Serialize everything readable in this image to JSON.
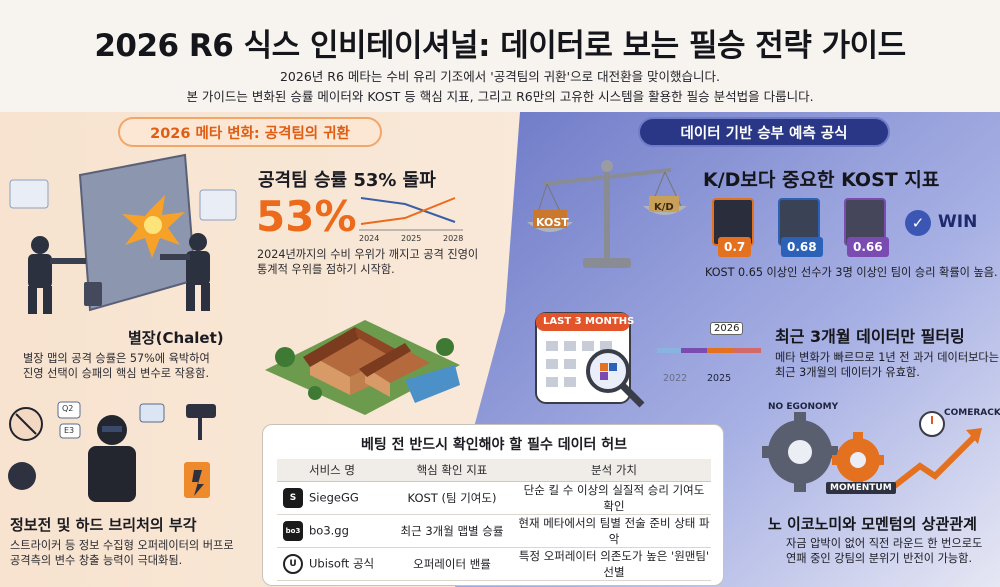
{
  "header": {
    "title": "2026 R6 식스 인비테이셔널: 데이터로 보는 필승 전략 가이드",
    "subtitle_1": "2026년 R6 메타는 수비 유리 기조에서 '공격팀의 귀환'으로 대전환을 맞이했습니다.",
    "subtitle_2": "본 가이드는 변화된 승률 메이터와 KOST 등 핵심 지표, 그리고 R6만의 고유한 시스템을 활용한 필승 분석법을 다룹니다."
  },
  "left": {
    "section_label": "2026 메타 변화: 공격팀의 귀환",
    "winrate": {
      "title": "공격팀 승률 53% 돌파",
      "big_number": "53%",
      "chart_x_ticks": [
        "2024",
        "2025",
        "2028"
      ],
      "desc_1": "2024년까지의 수비 우위가 깨지고 공격 진영이",
      "desc_2": "통계적 우위를 점하기 시작함."
    },
    "chalet": {
      "title": "별장(Chalet)",
      "desc_1": "별장 맵의 공격 승률은 57%에 육박하여",
      "desc_2": "진영 선택이 승패의 핵심 변수로 작용함."
    },
    "breach": {
      "title": "정보전 및 하드 브리처의 부각",
      "desc_1": "스트라이커 등 정보 수집형 오퍼레이터의 버프로",
      "desc_2": "공격측의 변수 창출 능력이 극대화됨."
    },
    "screen_labels": [
      "Q2",
      "E3"
    ]
  },
  "right": {
    "section_label": "데이터 기반 승부 예측 공식",
    "kost": {
      "title": "K/D보다 중요한 KOST 지표",
      "scale_left": "KOST",
      "scale_right": "K/D",
      "players": [
        {
          "value": "0.7",
          "color": "#e3711f"
        },
        {
          "value": "0.68",
          "color": "#2b62b8"
        },
        {
          "value": "0.66",
          "color": "#7a4bb0"
        }
      ],
      "win_label": "WIN",
      "desc": "KOST 0.65 이상인 선수가 3명 이상인 팀이 승리 확률이 높음."
    },
    "filter": {
      "calendar_label": "LAST 3 MONTHS",
      "timeline_labels": [
        "2022",
        "2025",
        "2026"
      ],
      "title": "최근 3개월 데이터만 필터링",
      "desc_1": "메타 변화가 빠르므로 1년 전 과거 데이터보다는",
      "desc_2": "최근 3개월의 데이터가 유효함."
    },
    "economy": {
      "gear_label_1": "NO EGONOMY",
      "gear_label_2": "MOMENTUM",
      "arrow_label": "COMERACK",
      "title": "노 이코노미와 모멘텀의 상관관계",
      "desc_1": "자금 압박이 없어 직전 라운드 한 번으로도",
      "desc_2": "연패 중인 강팀의 분위기 반전이 가능함."
    }
  },
  "hub": {
    "title": "베팅 전 반드시 확인해야 할 필수 데이터 허브",
    "columns": [
      "서비스 명",
      "핵심 확인 지표",
      "분석 가치"
    ],
    "rows": [
      {
        "logo": "S",
        "service": "SiegeGG",
        "metric": "KOST (팀 기여도)",
        "value": "단순 킬 수 이상의 실질적 승리 기여도 확인"
      },
      {
        "logo": "bo3",
        "service": "bo3.gg",
        "metric": "최근 3개월 맵별 승률",
        "value": "현재 메타에서의 팀별 전술 준비 상태 파악"
      },
      {
        "logo": "U",
        "service": "Ubisoft 공식",
        "metric": "오퍼레이터 밴률",
        "value": "특정 오퍼레이터 의존도가 높은 '원맨팀' 선별"
      }
    ]
  },
  "colors": {
    "accent_orange": "#ec6a1c",
    "navy": "#2a3787",
    "left_bg": "#f6e6d6",
    "right_bg": "#5763b4"
  }
}
